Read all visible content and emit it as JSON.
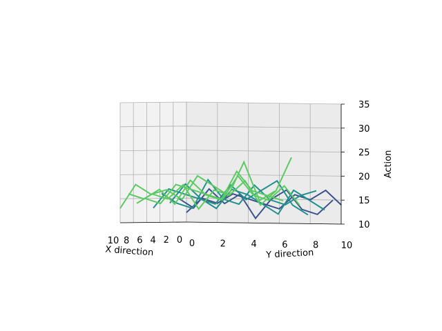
{
  "chart_data": {
    "type": "3d-wireframe",
    "title": "",
    "xlabel": "X direction",
    "ylabel": "Y direction",
    "zlabel": "Action",
    "x_ticks": [
      10,
      8,
      6,
      4,
      2,
      0
    ],
    "y_ticks": [
      10,
      8,
      6,
      4,
      2,
      0
    ],
    "z_ticks": [
      10,
      15,
      20,
      25,
      30,
      35
    ],
    "xlim": [
      0,
      10
    ],
    "ylim": [
      0,
      10
    ],
    "zlim": [
      10,
      35
    ],
    "grid": true,
    "colormap": [
      "#440154",
      "#3b528b",
      "#21908d",
      "#5dc963",
      "#fde725"
    ],
    "series": [
      {
        "values": [
          12,
          15,
          14,
          16,
          15,
          14,
          13,
          16,
          15,
          17,
          14
        ]
      },
      {
        "values": [
          15,
          13,
          17,
          14,
          16,
          11,
          15,
          17,
          13,
          12,
          15
        ]
      },
      {
        "values": [
          14,
          18,
          15,
          13,
          17,
          16,
          14,
          12,
          17,
          15,
          13
        ]
      },
      {
        "values": [
          16,
          14,
          13,
          19,
          15,
          14,
          18,
          15,
          14,
          16,
          17
        ]
      },
      {
        "values": [
          13,
          17,
          16,
          15,
          14,
          18,
          15,
          17,
          19,
          14,
          12
        ]
      },
      {
        "values": [
          15,
          14,
          18,
          17,
          16,
          15,
          20,
          16,
          15,
          18,
          14
        ]
      },
      {
        "values": [
          14,
          16,
          15,
          18,
          13,
          17,
          16,
          19,
          14,
          17,
          24
        ]
      },
      {
        "values": [
          16,
          15,
          17,
          14,
          19,
          16,
          15,
          21,
          17,
          16,
          15
        ]
      },
      {
        "values": [
          13,
          18,
          16,
          17,
          15,
          20,
          18,
          16,
          23,
          15,
          17
        ]
      }
    ]
  }
}
